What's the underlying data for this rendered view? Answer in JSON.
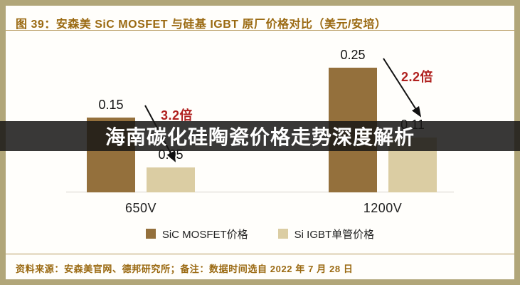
{
  "figure": {
    "title": "图 39：安森美 SiC MOSFET 与硅基 IGBT 原厂价格对比（美元/安培）",
    "source_note": "资料来源：安森美官网、德邦研究所；备注：数据时间选自 2022 年 7 月 28 日"
  },
  "overlay_banner": {
    "text": "海南碳化硅陶瓷价格走势深度解析"
  },
  "chart_data": {
    "type": "bar",
    "title": "安森美 SiC MOSFET 与硅基 IGBT 原厂价格对比",
    "unit": "美元/安培",
    "categories": [
      "650V",
      "1200V"
    ],
    "series": [
      {
        "name": "SiC MOSFET价格",
        "color": "#94703C",
        "values": [
          0.15,
          0.25
        ],
        "labels": [
          "0.15",
          "0.25"
        ]
      },
      {
        "name": "Si IGBT单管价格",
        "color": "#DBCDA3",
        "values": [
          0.05,
          0.11
        ],
        "labels": [
          "0.05",
          "0.11"
        ]
      }
    ],
    "annotations": [
      {
        "text": "3.2倍"
      },
      {
        "text": "2.2倍"
      }
    ],
    "ylim": [
      0,
      0.3
    ],
    "grid": false,
    "legend_position": "bottom"
  },
  "colors": {
    "frame": "#B1A679",
    "brown_text": "#9A6911",
    "bar_dark": "#94703C",
    "bar_light": "#DBCDA3",
    "ratio_red": "#B0211F",
    "overlay_bg": "rgba(24,23,22,0.86)"
  }
}
